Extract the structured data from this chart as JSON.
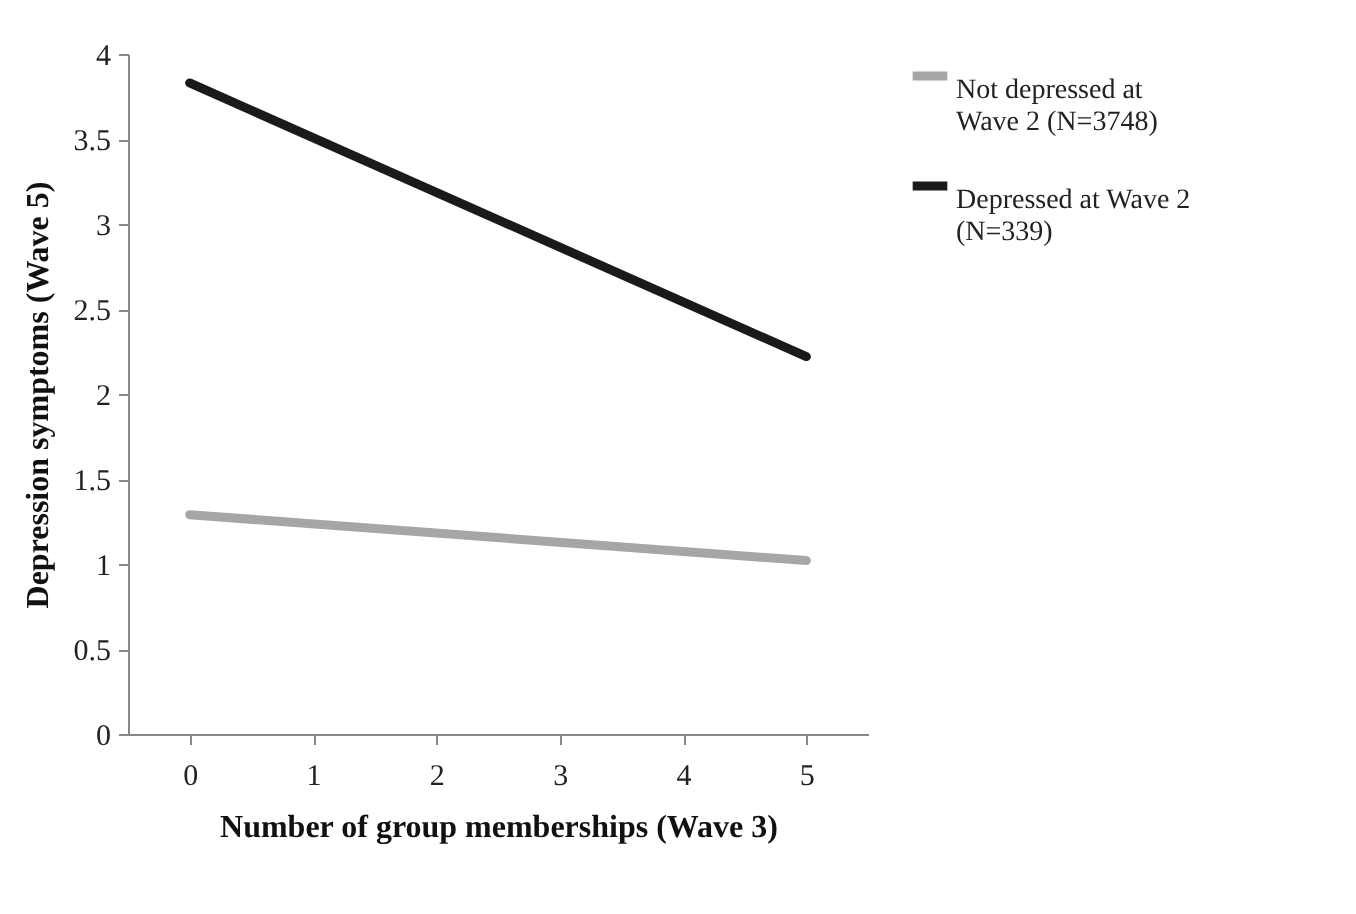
{
  "chart_data": {
    "type": "line",
    "xlabel": "Number of group memberships (Wave 3)",
    "ylabel": "Depression symptoms (Wave 5)",
    "xlim": [
      -0.5,
      5.5
    ],
    "xticks": [
      0,
      1,
      2,
      3,
      4,
      5
    ],
    "ylim": [
      0,
      4
    ],
    "yticks": [
      0,
      0.5,
      1,
      1.5,
      2,
      2.5,
      3,
      3.5,
      4
    ],
    "grid": false,
    "legend": "right",
    "x": [
      0,
      5
    ],
    "series": [
      {
        "name": "Not depressed at Wave 2 (N=3748)",
        "color": "#a6a6a6",
        "values": [
          1.29,
          1.02
        ]
      },
      {
        "name": "Depressed at Wave 2 (N=339)",
        "color": "#1a1a1a",
        "values": [
          3.83,
          2.22
        ]
      }
    ]
  }
}
